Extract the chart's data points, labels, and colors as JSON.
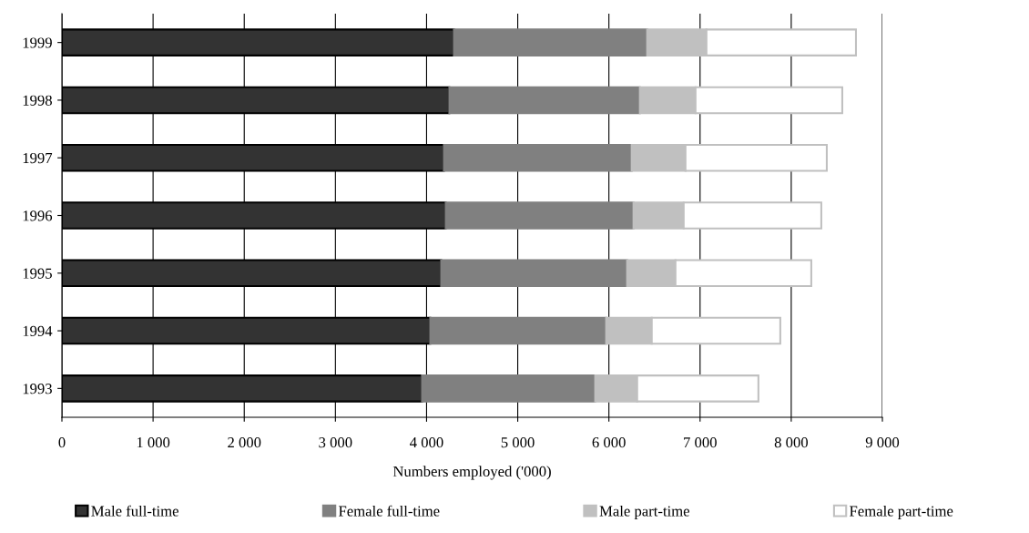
{
  "chart_data": {
    "type": "bar",
    "orientation": "horizontal",
    "stacked": true,
    "xlabel": "Numbers employed ('000)",
    "categories": [
      "1999",
      "1998",
      "1997",
      "1996",
      "1995",
      "1994",
      "1993"
    ],
    "series": [
      {
        "name": "Male full-time",
        "color": "#333333",
        "values": [
          4300,
          4250,
          4190,
          4210,
          4160,
          4040,
          3950
        ]
      },
      {
        "name": "Female full-time",
        "color": "#808080",
        "values": [
          2120,
          2090,
          2060,
          2060,
          2040,
          1930,
          1900
        ]
      },
      {
        "name": "Male part-time",
        "color": "#c0c0c0",
        "values": [
          650,
          610,
          590,
          550,
          530,
          500,
          460
        ]
      },
      {
        "name": "Female part-time",
        "color": "#ffffff",
        "values": [
          1640,
          1610,
          1550,
          1510,
          1490,
          1410,
          1330
        ]
      }
    ],
    "xlim": [
      0,
      9000
    ],
    "xticks": [
      0,
      {
        "value": 1000,
        "label": "1 000"
      },
      {
        "value": 2000,
        "label": "2 000"
      },
      {
        "value": 3000,
        "label": "3 000"
      },
      {
        "value": 4000,
        "label": "4 000"
      },
      {
        "value": 5000,
        "label": "5 000"
      },
      {
        "value": 6000,
        "label": "6 000"
      },
      {
        "value": 7000,
        "label": "7 000"
      },
      {
        "value": 8000,
        "label": "8 000"
      },
      {
        "value": 9000,
        "label": "9 000"
      }
    ],
    "grid": "x",
    "legend": "bottom"
  }
}
